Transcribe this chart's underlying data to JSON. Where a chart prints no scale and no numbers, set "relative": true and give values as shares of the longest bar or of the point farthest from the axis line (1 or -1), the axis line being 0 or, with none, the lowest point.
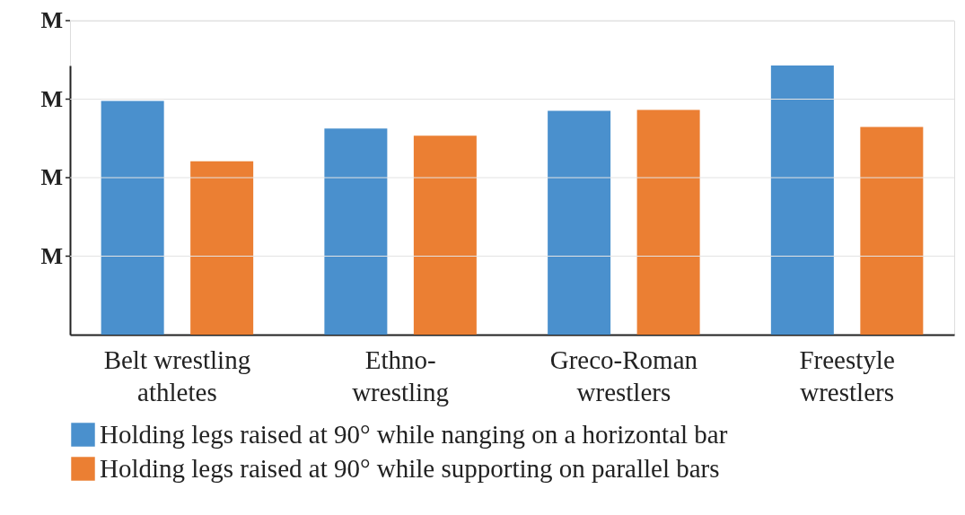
{
  "chart_data": {
    "type": "bar",
    "relative": true,
    "categories": [
      "Belt wrestling\nathletes",
      "Ethno-\nwrestling",
      "Greco-Roman\nwrestlers",
      "Freestyle\nwrestlers"
    ],
    "series": [
      {
        "name": "Holding legs raised at 90° while nanging on a horizontal bar",
        "color": "#4a90cd",
        "values": [
          0.868,
          0.766,
          0.832,
          1
        ]
      },
      {
        "name": "Holding legs raised at 90° while supporting on parallel bars",
        "color": "#eb7f33",
        "values": [
          0.644,
          0.739,
          0.835,
          0.772
        ]
      }
    ],
    "annotations": [
      "M",
      "M",
      "M",
      "M"
    ],
    "grid": "y",
    "legend": "bottom"
  }
}
